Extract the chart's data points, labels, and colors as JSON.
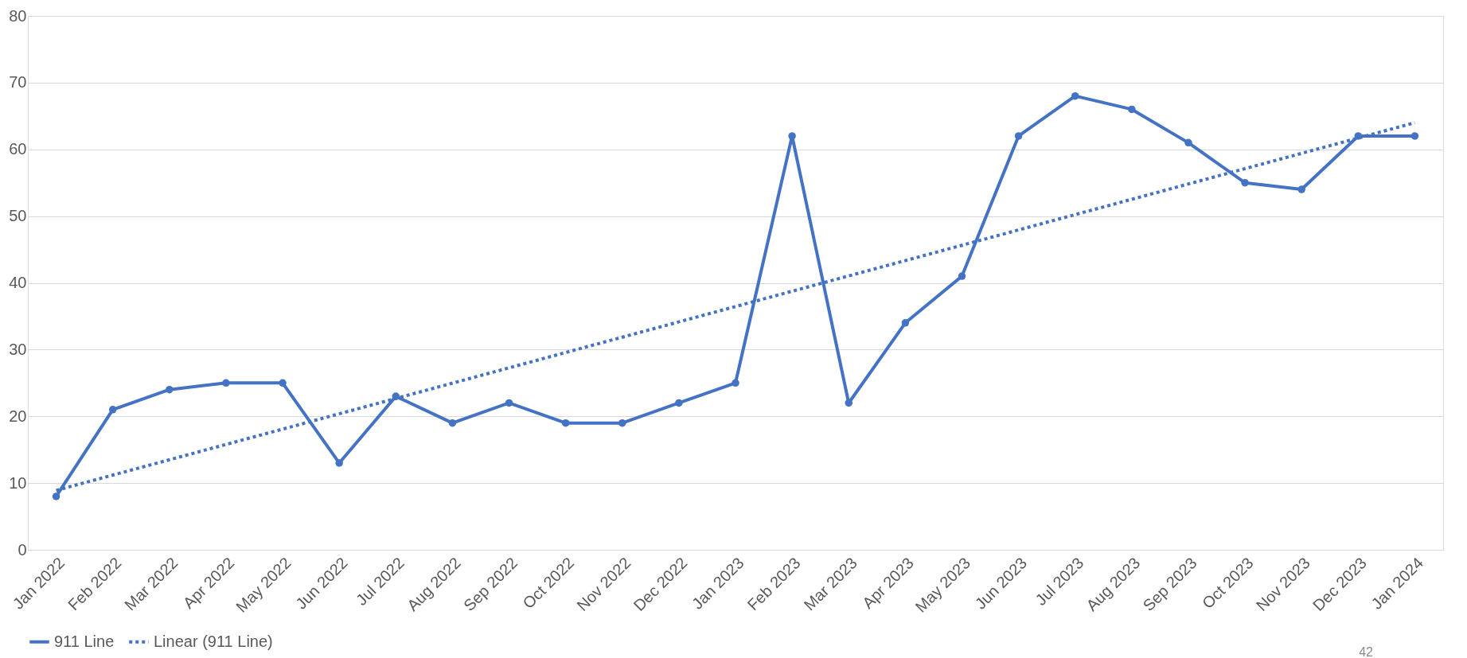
{
  "chart_data": {
    "type": "line",
    "categories": [
      "Jan 2022",
      "Feb 2022",
      "Mar 2022",
      "Apr 2022",
      "May 2022",
      "Jun 2022",
      "Jul 2022",
      "Aug 2022",
      "Sep 2022",
      "Oct 2022",
      "Nov 2022",
      "Dec 2022",
      "Jan 2023",
      "Feb 2023",
      "Mar 2023",
      "Apr 2023",
      "May 2023",
      "Jun 2023",
      "Jul 2023",
      "Aug 2023",
      "Sep 2023",
      "Oct 2023",
      "Nov 2023",
      "Dec 2023",
      "Jan 2024"
    ],
    "series": [
      {
        "name": "911 Line",
        "color": "#4472c4",
        "marker": "circle",
        "line_style": "solid",
        "values": [
          8,
          21,
          24,
          25,
          25,
          13,
          23,
          19,
          22,
          19,
          19,
          22,
          25,
          62,
          22,
          34,
          41,
          62,
          68,
          66,
          61,
          55,
          54,
          62,
          62
        ]
      },
      {
        "name": "Linear (911 Line)",
        "type": "line",
        "color": "#4472c4",
        "marker": "none",
        "line_style": "dotted",
        "x": [
          "Jan 2022",
          "Jan 2024"
        ],
        "values": [
          8.9,
          64
        ]
      }
    ],
    "ylim": [
      0,
      80
    ],
    "yticks": [
      0,
      10,
      20,
      30,
      40,
      50,
      60,
      70,
      80
    ],
    "grid": "y",
    "legend": "bottom",
    "annotations": [
      "42"
    ]
  }
}
